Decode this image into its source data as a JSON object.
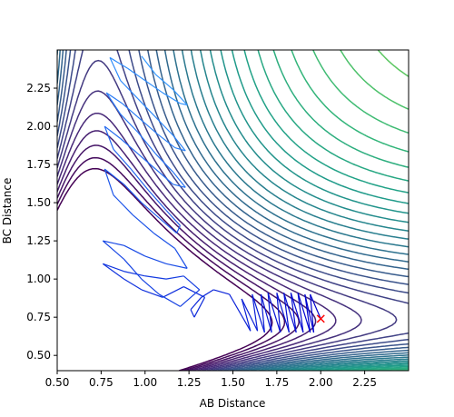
{
  "chart_data": {
    "type": "contour",
    "xlabel": "AB Distance",
    "ylabel": "BC Distance",
    "xlim": [
      0.5,
      2.5
    ],
    "ylim": [
      0.4,
      2.5
    ],
    "xticks": [
      0.5,
      0.75,
      1.0,
      1.25,
      1.5,
      1.75,
      2.0,
      2.25
    ],
    "xtick_labels": [
      "0.50",
      "0.75",
      "1.00",
      "1.25",
      "1.50",
      "1.75",
      "2.00",
      "2.25"
    ],
    "yticks": [
      0.5,
      0.75,
      1.0,
      1.25,
      1.5,
      1.75,
      2.0,
      2.25
    ],
    "ytick_labels": [
      "0.50",
      "0.75",
      "1.00",
      "1.25",
      "1.50",
      "1.75",
      "2.00",
      "2.25"
    ],
    "grid": false,
    "colormap": "viridis",
    "start_marker": {
      "x": 2.0,
      "y": 0.74,
      "symbol": "x",
      "color": "#ff0000"
    },
    "trajectory_color_start": "#0000cd",
    "trajectory_color_end": "#3399ff",
    "trajectory": [
      [
        2.0,
        0.74
      ],
      [
        1.94,
        0.9
      ],
      [
        1.96,
        0.65
      ],
      [
        1.91,
        0.9
      ],
      [
        1.94,
        0.65
      ],
      [
        1.87,
        0.91
      ],
      [
        1.9,
        0.65
      ],
      [
        1.83,
        0.91
      ],
      [
        1.86,
        0.65
      ],
      [
        1.79,
        0.91
      ],
      [
        1.82,
        0.65
      ],
      [
        1.75,
        0.91
      ],
      [
        1.77,
        0.65
      ],
      [
        1.7,
        0.91
      ],
      [
        1.72,
        0.65
      ],
      [
        1.66,
        0.9
      ],
      [
        1.68,
        0.65
      ],
      [
        1.61,
        0.9
      ],
      [
        1.64,
        0.66
      ],
      [
        1.55,
        0.87
      ],
      [
        1.6,
        0.66
      ],
      [
        1.48,
        0.9
      ],
      [
        1.39,
        0.93
      ],
      [
        1.32,
        0.88
      ],
      [
        1.26,
        0.8
      ],
      [
        1.28,
        0.75
      ],
      [
        1.34,
        0.88
      ],
      [
        1.22,
        0.95
      ],
      [
        1.1,
        0.88
      ],
      [
        0.98,
        0.93
      ],
      [
        0.88,
        1.0
      ],
      [
        0.76,
        1.1
      ],
      [
        0.88,
        1.05
      ],
      [
        1.0,
        1.02
      ],
      [
        1.12,
        1.0
      ],
      [
        1.22,
        1.02
      ],
      [
        1.31,
        0.93
      ],
      [
        1.2,
        0.82
      ],
      [
        1.08,
        0.9
      ],
      [
        0.98,
        1.0
      ],
      [
        0.88,
        1.13
      ],
      [
        0.76,
        1.25
      ],
      [
        0.88,
        1.22
      ],
      [
        1.0,
        1.15
      ],
      [
        1.12,
        1.1
      ],
      [
        1.24,
        1.07
      ],
      [
        1.17,
        1.2
      ],
      [
        1.05,
        1.3
      ],
      [
        0.93,
        1.42
      ],
      [
        0.82,
        1.55
      ],
      [
        0.77,
        1.72
      ],
      [
        0.88,
        1.62
      ],
      [
        0.98,
        1.5
      ],
      [
        1.08,
        1.4
      ],
      [
        1.18,
        1.3
      ],
      [
        1.2,
        1.35
      ],
      [
        1.12,
        1.45
      ],
      [
        1.02,
        1.58
      ],
      [
        0.92,
        1.72
      ],
      [
        0.82,
        1.85
      ],
      [
        0.77,
        2.0
      ],
      [
        0.86,
        1.92
      ],
      [
        0.96,
        1.82
      ],
      [
        1.06,
        1.72
      ],
      [
        1.16,
        1.62
      ],
      [
        1.23,
        1.6
      ],
      [
        1.16,
        1.7
      ],
      [
        1.06,
        1.82
      ],
      [
        0.96,
        1.96
      ],
      [
        0.86,
        2.08
      ],
      [
        0.78,
        2.22
      ],
      [
        0.87,
        2.15
      ],
      [
        0.97,
        2.05
      ],
      [
        1.07,
        1.95
      ],
      [
        1.17,
        1.86
      ],
      [
        1.23,
        1.84
      ],
      [
        1.16,
        1.94
      ],
      [
        1.06,
        2.06
      ],
      [
        0.96,
        2.18
      ],
      [
        0.86,
        2.3
      ],
      [
        0.8,
        2.45
      ],
      [
        0.9,
        2.38
      ],
      [
        1.0,
        2.3
      ],
      [
        1.1,
        2.22
      ],
      [
        1.2,
        2.15
      ],
      [
        1.24,
        2.14
      ],
      [
        1.16,
        2.24
      ],
      [
        1.06,
        2.34
      ],
      [
        0.98,
        2.46
      ]
    ]
  }
}
